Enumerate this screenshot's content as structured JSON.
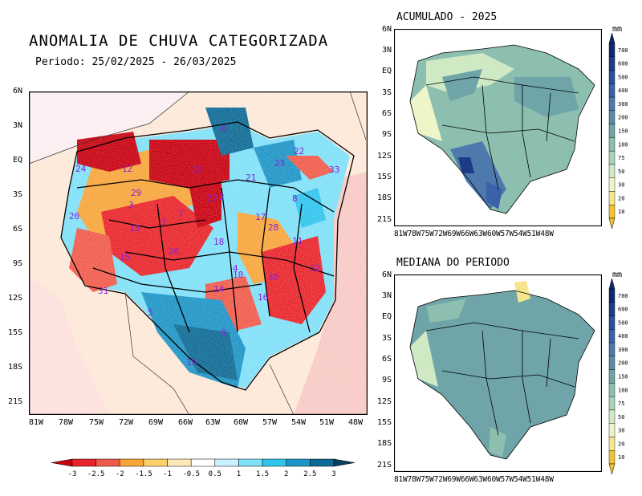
{
  "main": {
    "title": "ANOMALIA DE CHUVA CATEGORIZADA",
    "period_label": "Periodo: 25/02/2025 - 26/03/2025",
    "lat_ticks": [
      "6N",
      "3N",
      "EQ",
      "3S",
      "6S",
      "9S",
      "12S",
      "15S",
      "18S",
      "21S"
    ],
    "lon_ticks": [
      "81W",
      "78W",
      "75W",
      "72W",
      "69W",
      "66W",
      "63W",
      "60W",
      "57W",
      "54W",
      "51W",
      "48W"
    ],
    "basin_labels": [
      "1",
      "2",
      "3",
      "4",
      "5",
      "6",
      "7",
      "8",
      "9",
      "10",
      "11",
      "12",
      "13",
      "14",
      "15",
      "16",
      "17",
      "18",
      "19",
      "20",
      "21",
      "22",
      "23",
      "24",
      "25",
      "26",
      "27",
      "28",
      "29",
      "30",
      "31",
      "32",
      "33"
    ],
    "colorbar": {
      "ticks": [
        "-3",
        "-2.5",
        "-2",
        "-1.5",
        "-1",
        "-0.5",
        "0.5",
        "1",
        "1.5",
        "2",
        "2.5",
        "3"
      ],
      "colors": [
        "#c8000f",
        "#e8242a",
        "#f05a4a",
        "#f7a53b",
        "#fcd06a",
        "#fde8b8",
        "#ffffff",
        "#c9f0ff",
        "#7fe0f8",
        "#2fc4ee",
        "#1d94c6",
        "#0e6a94",
        "#0b3f5e"
      ]
    }
  },
  "top_right": {
    "title": "ACUMULADO - 2025",
    "unit": "mm",
    "lat_ticks": [
      "6N",
      "3N",
      "EQ",
      "3S",
      "6S",
      "9S",
      "12S",
      "15S",
      "18S",
      "21S"
    ],
    "lon_ticks": [
      "81W",
      "78W",
      "75W",
      "72W",
      "69W",
      "66W",
      "63W",
      "60W",
      "57W",
      "54W",
      "51W",
      "48W"
    ],
    "colorbar_ticks": [
      "700",
      "600",
      "500",
      "400",
      "300",
      "200",
      "150",
      "100",
      "75",
      "50",
      "30",
      "20",
      "10"
    ]
  },
  "bottom_right": {
    "title": "MEDIANA DO PERIODO",
    "unit": "mm",
    "lat_ticks": [
      "6N",
      "3N",
      "EQ",
      "3S",
      "6S",
      "9S",
      "12S",
      "15S",
      "18S",
      "21S"
    ],
    "lon_ticks": [
      "81W",
      "78W",
      "75W",
      "72W",
      "69W",
      "66W",
      "63W",
      "60W",
      "57W",
      "54W",
      "51W",
      "48W"
    ],
    "colorbar_ticks": [
      "700",
      "600",
      "500",
      "400",
      "300",
      "200",
      "150",
      "100",
      "75",
      "50",
      "30",
      "20",
      "10"
    ]
  },
  "rain_colors": [
    "#f2c230",
    "#f6e58c",
    "#eef5c8",
    "#cfe9c4",
    "#a8d4b8",
    "#8cbfb0",
    "#6fa4a8",
    "#5b8ca8",
    "#4d79ad",
    "#3a62a8",
    "#2b4f9a",
    "#1c3c86",
    "#0f2870"
  ]
}
